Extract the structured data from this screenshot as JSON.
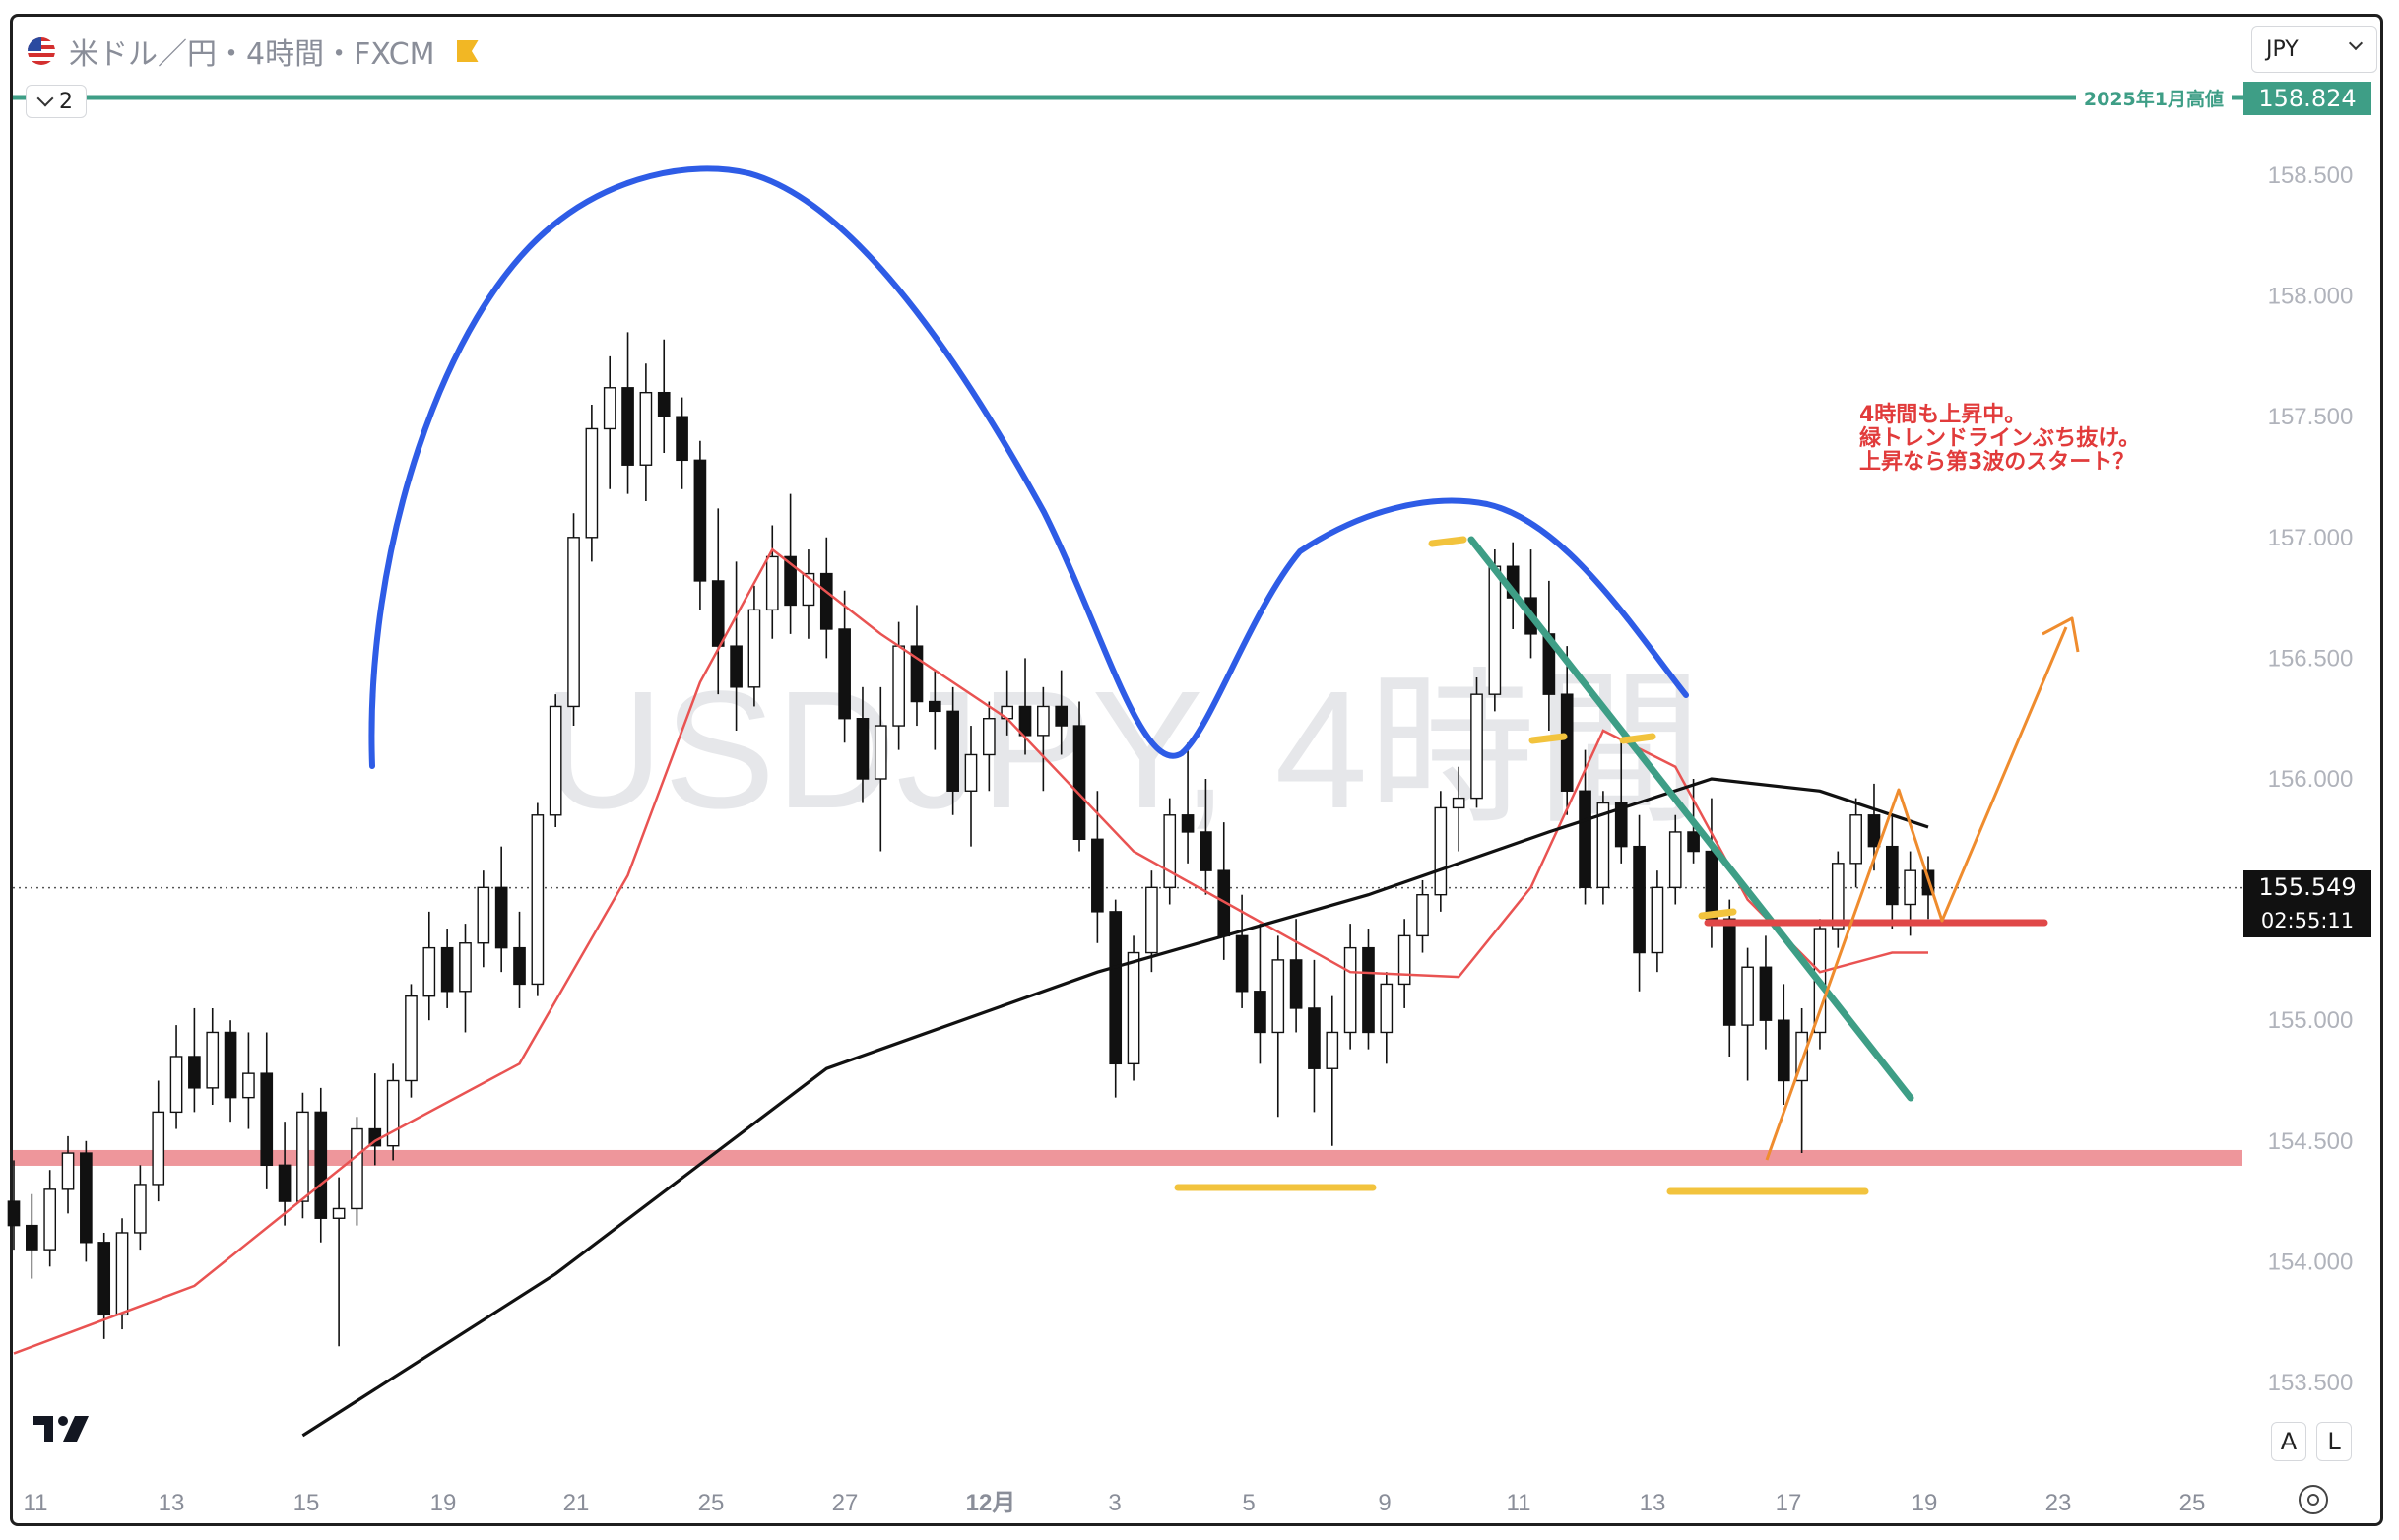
{
  "header": {
    "title": "米ドル／円・4時間・FXCM",
    "collapse_count": "2",
    "currency": "JPY"
  },
  "watermark": "USDJPY, 4時間",
  "note": {
    "lines": [
      "4時間も上昇中。",
      "緑トレンドラインぶち抜け。",
      "上昇なら第3波のスタート？"
    ]
  },
  "tool_buttons": {
    "auto": "A",
    "log": "L"
  },
  "colors": {
    "bull": "#ffffff",
    "bear": "#111111",
    "sma_short": "#e95352",
    "sma_long": "#111111",
    "blue_curve": "#2e5ce6",
    "green_trend": "#3e9e86",
    "orange": "#ef8c2e",
    "support_band": "#e8737a",
    "yellow_mark": "#f2c33d",
    "label_green": "#3e9e86"
  },
  "chart_data": {
    "type": "candlestick",
    "symbol": "USDJPY",
    "interval": "4時間",
    "source": "FXCM",
    "ylim": [
      153.28,
      158.87
    ],
    "y_ticks": [
      158.5,
      158.0,
      157.5,
      157.0,
      156.5,
      156.0,
      155.0,
      154.5,
      154.0,
      153.5
    ],
    "y_tick_labels": [
      "158.500",
      "158.000",
      "157.500",
      "157.000",
      "156.500",
      "156.000",
      "155.000",
      "154.500",
      "154.000",
      "153.500"
    ],
    "x_ticks": [
      "11",
      "13",
      "15",
      "19",
      "21",
      "25",
      "27",
      "12月",
      "3",
      "5",
      "9",
      "11",
      "13",
      "17",
      "19",
      "23",
      "25"
    ],
    "last_price": "155.549",
    "countdown": "02:55:11",
    "level_label": {
      "text": "2025年1月高値",
      "value": "158.824"
    },
    "candles_ohlc": [
      [
        154.25,
        154.42,
        154.05,
        154.15
      ],
      [
        154.15,
        154.28,
        153.93,
        154.05
      ],
      [
        154.05,
        154.38,
        153.98,
        154.3
      ],
      [
        154.3,
        154.52,
        154.2,
        154.45
      ],
      [
        154.45,
        154.5,
        154.0,
        154.08
      ],
      [
        154.08,
        154.12,
        153.68,
        153.78
      ],
      [
        153.78,
        154.18,
        153.72,
        154.12
      ],
      [
        154.12,
        154.4,
        154.05,
        154.32
      ],
      [
        154.32,
        154.75,
        154.25,
        154.62
      ],
      [
        154.62,
        154.98,
        154.55,
        154.85
      ],
      [
        154.85,
        155.05,
        154.62,
        154.72
      ],
      [
        154.72,
        155.05,
        154.65,
        154.95
      ],
      [
        154.95,
        155.0,
        154.58,
        154.68
      ],
      [
        154.68,
        154.95,
        154.55,
        154.78
      ],
      [
        154.78,
        154.95,
        154.3,
        154.4
      ],
      [
        154.4,
        154.58,
        154.15,
        154.25
      ],
      [
        154.25,
        154.7,
        154.18,
        154.62
      ],
      [
        154.62,
        154.72,
        154.08,
        154.18
      ],
      [
        154.18,
        154.35,
        153.65,
        154.22
      ],
      [
        154.22,
        154.6,
        154.15,
        154.55
      ],
      [
        154.55,
        154.78,
        154.4,
        154.48
      ],
      [
        154.48,
        154.82,
        154.42,
        154.75
      ],
      [
        154.75,
        155.15,
        154.68,
        155.1
      ],
      [
        155.1,
        155.45,
        155.0,
        155.3
      ],
      [
        155.3,
        155.38,
        155.05,
        155.12
      ],
      [
        155.12,
        155.4,
        154.95,
        155.32
      ],
      [
        155.32,
        155.62,
        155.22,
        155.55
      ],
      [
        155.55,
        155.72,
        155.2,
        155.3
      ],
      [
        155.3,
        155.45,
        155.05,
        155.15
      ],
      [
        155.15,
        155.9,
        155.1,
        155.85
      ],
      [
        155.85,
        156.35,
        155.8,
        156.3
      ],
      [
        156.3,
        157.1,
        156.22,
        157.0
      ],
      [
        157.0,
        157.55,
        156.9,
        157.45
      ],
      [
        157.45,
        157.75,
        157.2,
        157.62
      ],
      [
        157.62,
        157.85,
        157.18,
        157.3
      ],
      [
        157.3,
        157.72,
        157.15,
        157.6
      ],
      [
        157.6,
        157.82,
        157.35,
        157.5
      ],
      [
        157.5,
        157.58,
        157.2,
        157.32
      ],
      [
        157.32,
        157.4,
        156.7,
        156.82
      ],
      [
        156.82,
        157.12,
        156.35,
        156.55
      ],
      [
        156.55,
        156.9,
        156.2,
        156.38
      ],
      [
        156.38,
        156.8,
        156.3,
        156.7
      ],
      [
        156.7,
        157.05,
        156.58,
        156.92
      ],
      [
        156.92,
        157.18,
        156.6,
        156.72
      ],
      [
        156.72,
        156.95,
        156.58,
        156.85
      ],
      [
        156.85,
        157.0,
        156.5,
        156.62
      ],
      [
        156.62,
        156.78,
        156.15,
        156.25
      ],
      [
        156.25,
        156.38,
        155.9,
        156.0
      ],
      [
        156.0,
        156.38,
        155.7,
        156.22
      ],
      [
        156.22,
        156.65,
        156.12,
        156.55
      ],
      [
        156.55,
        156.72,
        156.22,
        156.32
      ],
      [
        156.32,
        156.45,
        156.12,
        156.28
      ],
      [
        156.28,
        156.38,
        155.85,
        155.95
      ],
      [
        155.95,
        156.22,
        155.72,
        156.1
      ],
      [
        156.1,
        156.32,
        155.95,
        156.25
      ],
      [
        156.25,
        156.45,
        156.18,
        156.3
      ],
      [
        156.3,
        156.5,
        156.1,
        156.18
      ],
      [
        156.18,
        156.38,
        155.95,
        156.3
      ],
      [
        156.3,
        156.45,
        156.1,
        156.22
      ],
      [
        156.22,
        156.32,
        155.7,
        155.75
      ],
      [
        155.75,
        155.95,
        155.32,
        155.45
      ],
      [
        155.45,
        155.5,
        154.68,
        154.82
      ],
      [
        154.82,
        155.35,
        154.75,
        155.28
      ],
      [
        155.28,
        155.62,
        155.2,
        155.55
      ],
      [
        155.55,
        155.92,
        155.48,
        155.85
      ],
      [
        155.85,
        156.15,
        155.65,
        155.78
      ],
      [
        155.78,
        156.0,
        155.52,
        155.62
      ],
      [
        155.62,
        155.82,
        155.25,
        155.35
      ],
      [
        155.35,
        155.52,
        155.05,
        155.12
      ],
      [
        155.12,
        155.4,
        154.82,
        154.95
      ],
      [
        154.95,
        155.35,
        154.6,
        155.25
      ],
      [
        155.25,
        155.42,
        154.95,
        155.05
      ],
      [
        155.05,
        155.25,
        154.62,
        154.8
      ],
      [
        154.8,
        155.1,
        154.48,
        154.95
      ],
      [
        154.95,
        155.4,
        154.88,
        155.3
      ],
      [
        155.3,
        155.38,
        154.88,
        154.95
      ],
      [
        154.95,
        155.2,
        154.82,
        155.15
      ],
      [
        155.15,
        155.42,
        155.05,
        155.35
      ],
      [
        155.35,
        155.58,
        155.28,
        155.52
      ],
      [
        155.52,
        155.95,
        155.45,
        155.88
      ],
      [
        155.88,
        156.05,
        155.7,
        155.92
      ],
      [
        155.92,
        156.42,
        155.88,
        156.35
      ],
      [
        156.35,
        156.95,
        156.28,
        156.88
      ],
      [
        156.88,
        156.98,
        156.62,
        156.75
      ],
      [
        156.75,
        156.95,
        156.5,
        156.6
      ],
      [
        156.6,
        156.82,
        156.2,
        156.35
      ],
      [
        156.35,
        156.55,
        155.85,
        155.95
      ],
      [
        155.95,
        156.12,
        155.48,
        155.55
      ],
      [
        155.55,
        155.95,
        155.48,
        155.9
      ],
      [
        155.9,
        156.15,
        155.65,
        155.72
      ],
      [
        155.72,
        155.85,
        155.12,
        155.28
      ],
      [
        155.28,
        155.62,
        155.2,
        155.55
      ],
      [
        155.55,
        155.85,
        155.48,
        155.78
      ],
      [
        155.78,
        156.0,
        155.65,
        155.7
      ],
      [
        155.7,
        155.92,
        155.3,
        155.42
      ],
      [
        155.42,
        155.5,
        154.85,
        154.98
      ],
      [
        154.98,
        155.3,
        154.75,
        155.22
      ],
      [
        155.22,
        155.35,
        154.88,
        155.0
      ],
      [
        155.0,
        155.15,
        154.65,
        154.75
      ],
      [
        154.75,
        155.05,
        154.45,
        154.95
      ],
      [
        154.95,
        155.42,
        154.88,
        155.38
      ],
      [
        155.38,
        155.7,
        155.3,
        155.65
      ],
      [
        155.65,
        155.92,
        155.55,
        155.85
      ],
      [
        155.85,
        155.98,
        155.62,
        155.72
      ],
      [
        155.72,
        155.85,
        155.38,
        155.48
      ],
      [
        155.48,
        155.7,
        155.35,
        155.62
      ],
      [
        155.62,
        155.68,
        155.42,
        155.52
      ]
    ],
    "indicators": [
      {
        "name": "SMA short",
        "color": "#e95352",
        "points": [
          [
            0,
            153.62
          ],
          [
            10,
            153.9
          ],
          [
            20,
            154.5
          ],
          [
            28,
            154.82
          ],
          [
            34,
            155.6
          ],
          [
            38,
            156.4
          ],
          [
            42,
            156.95
          ],
          [
            48,
            156.6
          ],
          [
            55,
            156.25
          ],
          [
            62,
            155.7
          ],
          [
            68,
            155.45
          ],
          [
            74,
            155.2
          ],
          [
            80,
            155.18
          ],
          [
            84,
            155.55
          ],
          [
            88,
            156.2
          ],
          [
            92,
            156.05
          ],
          [
            96,
            155.5
          ],
          [
            100,
            155.2
          ],
          [
            104,
            155.28
          ],
          [
            106,
            155.28
          ]
        ]
      },
      {
        "name": "SMA long",
        "color": "#111111",
        "points": [
          [
            16,
            153.28
          ],
          [
            30,
            153.95
          ],
          [
            45,
            154.8
          ],
          [
            60,
            155.2
          ],
          [
            75,
            155.52
          ],
          [
            85,
            155.78
          ],
          [
            94,
            156.0
          ],
          [
            100,
            155.95
          ],
          [
            104,
            155.85
          ],
          [
            106,
            155.8
          ]
        ]
      }
    ],
    "levels": [
      {
        "price": 154.43,
        "kind": "support-band"
      },
      {
        "price": 158.824,
        "kind": "horizontal-line"
      },
      {
        "price": 155.38,
        "kind": "red-segment"
      }
    ]
  }
}
